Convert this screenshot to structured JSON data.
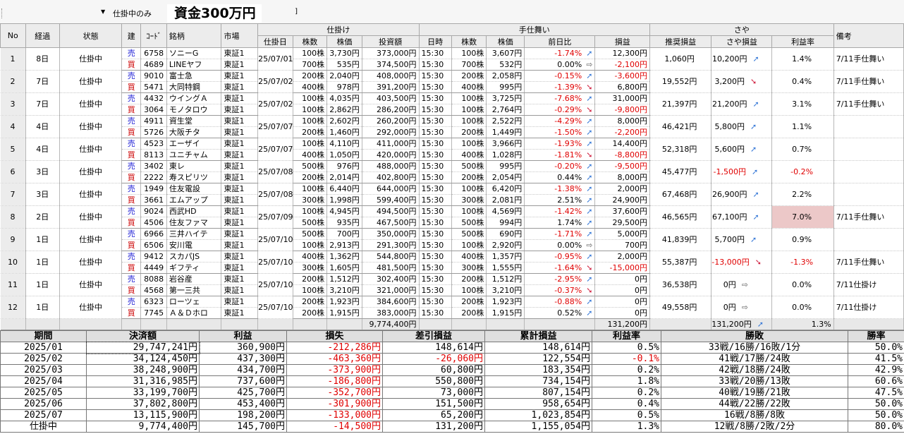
{
  "toolbar": {
    "filter_label": "仕掛中のみ",
    "capital_label": "資金300万円",
    "extra_label": "]"
  },
  "headers": {
    "no": "No",
    "elapsed": "経過",
    "status": "状態",
    "side": "建",
    "code": "ｺｰﾄﾞ",
    "name": "銘柄",
    "market": "市場",
    "entry_group": "仕掛け",
    "exit_group": "手仕舞い",
    "spread_group": "さや",
    "note": "備考",
    "entry_date": "仕掛日",
    "shares": "株数",
    "price": "株価",
    "amount": "投資額",
    "time": "日時",
    "exit_shares": "株数",
    "exit_price": "株価",
    "prev_diff": "前日比",
    "pl": "損益",
    "rec_pl": "推奨損益",
    "spread_pl": "さや損益",
    "rate": "利益率"
  },
  "rows": [
    {
      "no": "1",
      "elapsed": "8日",
      "status": "仕掛中",
      "date": "25/07/01",
      "rec": "1,060円",
      "spread": "10,200円",
      "trend": "up",
      "rate": "1.4%",
      "note": "7/11手仕舞い",
      "spread_neg": false,
      "hl": false,
      "legs": [
        {
          "side": "売",
          "code": "6758",
          "name": "ソニーG",
          "market": "東証1",
          "shares": "100株",
          "price": "3,730円",
          "amount": "373,000円",
          "time": "15:30",
          "xshares": "100株",
          "xprice": "3,607円",
          "diff": "-1.74%",
          "dtrend": "up",
          "pl": "12,300円"
        },
        {
          "side": "買",
          "code": "4689",
          "name": "LINEヤフ",
          "market": "東証1",
          "shares": "700株",
          "price": "535円",
          "amount": "374,500円",
          "time": "15:30",
          "xshares": "700株",
          "xprice": "532円",
          "diff": "0.00%",
          "dtrend": "flat",
          "pl": "-2,100円"
        }
      ]
    },
    {
      "no": "2",
      "elapsed": "7日",
      "status": "仕掛中",
      "date": "25/07/02",
      "rec": "19,552円",
      "spread": "3,200円",
      "trend": "down",
      "rate": "0.4%",
      "note": "7/11手仕舞い",
      "spread_neg": false,
      "hl": false,
      "legs": [
        {
          "side": "売",
          "code": "9010",
          "name": "富士急",
          "market": "東証1",
          "shares": "200株",
          "price": "2,040円",
          "amount": "408,000円",
          "time": "15:30",
          "xshares": "200株",
          "xprice": "2,058円",
          "diff": "-0.15%",
          "dtrend": "up",
          "pl": "-3,600円"
        },
        {
          "side": "買",
          "code": "5471",
          "name": "大同特鋼",
          "market": "東証1",
          "shares": "400株",
          "price": "978円",
          "amount": "391,200円",
          "time": "15:30",
          "xshares": "400株",
          "xprice": "995円",
          "diff": "-1.39%",
          "dtrend": "down",
          "pl": "6,800円"
        }
      ]
    },
    {
      "no": "3",
      "elapsed": "7日",
      "status": "仕掛中",
      "date": "25/07/02",
      "rec": "21,397円",
      "spread": "21,200円",
      "trend": "up",
      "rate": "3.1%",
      "note": "7/11手仕舞い",
      "spread_neg": false,
      "hl": false,
      "legs": [
        {
          "side": "売",
          "code": "4432",
          "name": "ウイングＡ",
          "market": "東証1",
          "shares": "100株",
          "price": "4,035円",
          "amount": "403,500円",
          "time": "15:30",
          "xshares": "100株",
          "xprice": "3,725円",
          "diff": "-7.68%",
          "dtrend": "up",
          "pl": "31,000円"
        },
        {
          "side": "買",
          "code": "3064",
          "name": "モノタロウ",
          "market": "東証1",
          "shares": "100株",
          "price": "2,862円",
          "amount": "286,200円",
          "time": "15:30",
          "xshares": "100株",
          "xprice": "2,764円",
          "diff": "-0.29%",
          "dtrend": "down",
          "pl": "-9,800円"
        }
      ]
    },
    {
      "no": "4",
      "elapsed": "4日",
      "status": "仕掛中",
      "date": "25/07/07",
      "rec": "46,421円",
      "spread": "5,800円",
      "trend": "up",
      "rate": "1.1%",
      "note": "",
      "spread_neg": false,
      "hl": false,
      "legs": [
        {
          "side": "売",
          "code": "4911",
          "name": "資生堂",
          "market": "東証1",
          "shares": "100株",
          "price": "2,602円",
          "amount": "260,200円",
          "time": "15:30",
          "xshares": "100株",
          "xprice": "2,522円",
          "diff": "-4.29%",
          "dtrend": "up",
          "pl": "8,000円"
        },
        {
          "side": "買",
          "code": "5726",
          "name": "大阪チタ",
          "market": "東証1",
          "shares": "200株",
          "price": "1,460円",
          "amount": "292,000円",
          "time": "15:30",
          "xshares": "200株",
          "xprice": "1,449円",
          "diff": "-1.50%",
          "dtrend": "up",
          "pl": "-2,200円"
        }
      ]
    },
    {
      "no": "5",
      "elapsed": "4日",
      "status": "仕掛中",
      "date": "25/07/07",
      "rec": "52,318円",
      "spread": "5,600円",
      "trend": "up",
      "rate": "0.7%",
      "note": "",
      "spread_neg": false,
      "hl": false,
      "legs": [
        {
          "side": "売",
          "code": "4523",
          "name": "エーザイ",
          "market": "東証1",
          "shares": "100株",
          "price": "4,110円",
          "amount": "411,000円",
          "time": "15:30",
          "xshares": "100株",
          "xprice": "3,966円",
          "diff": "-1.93%",
          "dtrend": "up",
          "pl": "14,400円"
        },
        {
          "side": "買",
          "code": "8113",
          "name": "ユニチャム",
          "market": "東証1",
          "shares": "400株",
          "price": "1,050円",
          "amount": "420,000円",
          "time": "15:30",
          "xshares": "400株",
          "xprice": "1,028円",
          "diff": "-1.81%",
          "dtrend": "down",
          "pl": "-8,800円"
        }
      ]
    },
    {
      "no": "6",
      "elapsed": "3日",
      "status": "仕掛中",
      "date": "25/07/08",
      "rec": "45,477円",
      "spread": "-1,500円",
      "trend": "up",
      "rate": "-0.2%",
      "note": "",
      "spread_neg": true,
      "hl": false,
      "legs": [
        {
          "side": "売",
          "code": "3402",
          "name": "東レ",
          "market": "東証1",
          "shares": "500株",
          "price": "976円",
          "amount": "488,000円",
          "time": "15:30",
          "xshares": "500株",
          "xprice": "995円",
          "diff": "-0.20%",
          "dtrend": "up",
          "pl": "-9,500円"
        },
        {
          "side": "買",
          "code": "2222",
          "name": "寿スピリツ",
          "market": "東証1",
          "shares": "200株",
          "price": "2,014円",
          "amount": "402,800円",
          "time": "15:30",
          "xshares": "200株",
          "xprice": "2,054円",
          "diff": "0.44%",
          "dtrend": "up",
          "pl": "8,000円"
        }
      ]
    },
    {
      "no": "7",
      "elapsed": "3日",
      "status": "仕掛中",
      "date": "25/07/08",
      "rec": "67,468円",
      "spread": "26,900円",
      "trend": "up",
      "rate": "2.2%",
      "note": "",
      "spread_neg": false,
      "hl": false,
      "legs": [
        {
          "side": "売",
          "code": "1949",
          "name": "住友電設",
          "market": "東証1",
          "shares": "100株",
          "price": "6,440円",
          "amount": "644,000円",
          "time": "15:30",
          "xshares": "100株",
          "xprice": "6,420円",
          "diff": "-1.38%",
          "dtrend": "up",
          "pl": "2,000円"
        },
        {
          "side": "買",
          "code": "3661",
          "name": "エムアップ",
          "market": "東証1",
          "shares": "300株",
          "price": "1,998円",
          "amount": "599,400円",
          "time": "15:30",
          "xshares": "300株",
          "xprice": "2,081円",
          "diff": "2.51%",
          "dtrend": "up",
          "pl": "24,900円"
        }
      ]
    },
    {
      "no": "8",
      "elapsed": "2日",
      "status": "仕掛中",
      "date": "25/07/09",
      "rec": "46,565円",
      "spread": "67,100円",
      "trend": "up",
      "rate": "7.0%",
      "note": "7/11手仕舞い",
      "spread_neg": false,
      "hl": true,
      "legs": [
        {
          "side": "売",
          "code": "9024",
          "name": "西武HD",
          "market": "東証1",
          "shares": "100株",
          "price": "4,945円",
          "amount": "494,500円",
          "time": "15:30",
          "xshares": "100株",
          "xprice": "4,569円",
          "diff": "-1.42%",
          "dtrend": "up",
          "pl": "37,600円"
        },
        {
          "side": "買",
          "code": "4506",
          "name": "住友ファマ",
          "market": "東証1",
          "shares": "500株",
          "price": "935円",
          "amount": "467,500円",
          "time": "15:30",
          "xshares": "500株",
          "xprice": "994円",
          "diff": "1.74%",
          "dtrend": "up",
          "pl": "29,500円"
        }
      ]
    },
    {
      "no": "9",
      "elapsed": "1日",
      "status": "仕掛中",
      "date": "25/07/10",
      "rec": "41,839円",
      "spread": "5,700円",
      "trend": "up",
      "rate": "0.9%",
      "note": "",
      "spread_neg": false,
      "hl": false,
      "legs": [
        {
          "side": "売",
          "code": "6966",
          "name": "三井ハイテ",
          "market": "東証1",
          "shares": "500株",
          "price": "700円",
          "amount": "350,000円",
          "time": "15:30",
          "xshares": "500株",
          "xprice": "690円",
          "diff": "-1.71%",
          "dtrend": "up",
          "pl": "5,000円"
        },
        {
          "side": "買",
          "code": "6506",
          "name": "安川電",
          "market": "東証1",
          "shares": "100株",
          "price": "2,913円",
          "amount": "291,300円",
          "time": "15:30",
          "xshares": "100株",
          "xprice": "2,920円",
          "diff": "0.00%",
          "dtrend": "flat",
          "pl": "700円"
        }
      ]
    },
    {
      "no": "10",
      "elapsed": "1日",
      "status": "仕掛中",
      "date": "25/07/10",
      "rec": "55,387円",
      "spread": "-13,000円",
      "trend": "down",
      "rate": "-1.3%",
      "note": "7/11手仕舞い",
      "spread_neg": true,
      "hl": false,
      "legs": [
        {
          "side": "売",
          "code": "9412",
          "name": "スカパJS",
          "market": "東証1",
          "shares": "400株",
          "price": "1,362円",
          "amount": "544,800円",
          "time": "15:30",
          "xshares": "400株",
          "xprice": "1,357円",
          "diff": "-0.95%",
          "dtrend": "up",
          "pl": "2,000円"
        },
        {
          "side": "買",
          "code": "4449",
          "name": "ギフティ",
          "market": "東証1",
          "shares": "300株",
          "price": "1,605円",
          "amount": "481,500円",
          "time": "15:30",
          "xshares": "300株",
          "xprice": "1,555円",
          "diff": "-1.64%",
          "dtrend": "down",
          "pl": "-15,000円"
        }
      ]
    },
    {
      "no": "11",
      "elapsed": "1日",
      "status": "仕掛中",
      "date": "25/07/10",
      "rec": "36,538円",
      "spread": "0円",
      "trend": "flat",
      "rate": "0.0%",
      "note": "7/11仕掛け",
      "spread_neg": false,
      "hl": false,
      "legs": [
        {
          "side": "売",
          "code": "8088",
          "name": "岩谷産",
          "market": "東証1",
          "shares": "200株",
          "price": "1,512円",
          "amount": "302,400円",
          "time": "15:30",
          "xshares": "200株",
          "xprice": "1,512円",
          "diff": "-2.95%",
          "dtrend": "up",
          "pl": "0円"
        },
        {
          "side": "買",
          "code": "4568",
          "name": "第一三共",
          "market": "東証1",
          "shares": "100株",
          "price": "3,210円",
          "amount": "321,000円",
          "time": "15:30",
          "xshares": "100株",
          "xprice": "3,210円",
          "diff": "-0.37%",
          "dtrend": "down",
          "pl": "0円"
        }
      ]
    },
    {
      "no": "12",
      "elapsed": "1日",
      "status": "仕掛中",
      "date": "25/07/10",
      "rec": "49,558円",
      "spread": "0円",
      "trend": "flat",
      "rate": "0.0%",
      "note": "7/11仕掛け",
      "spread_neg": false,
      "hl": false,
      "legs": [
        {
          "side": "売",
          "code": "6323",
          "name": "ローツェ",
          "market": "東証1",
          "shares": "200株",
          "price": "1,923円",
          "amount": "384,600円",
          "time": "15:30",
          "xshares": "200株",
          "xprice": "1,923円",
          "diff": "-0.88%",
          "dtrend": "up",
          "pl": "0円"
        },
        {
          "side": "買",
          "code": "7745",
          "name": "Ａ＆Ｄホロ",
          "market": "東証1",
          "shares": "200株",
          "price": "1,915円",
          "amount": "383,000円",
          "time": "15:30",
          "xshares": "200株",
          "xprice": "1,915円",
          "diff": "0.52%",
          "dtrend": "up",
          "pl": "0円"
        }
      ]
    }
  ],
  "totals": {
    "amount": "9,774,400円",
    "pl": "131,200円",
    "spread": "131,200円",
    "trend": "up",
    "rate": "1.3%"
  },
  "summary": {
    "headers": [
      "期間",
      "決済額",
      "利益",
      "損失",
      "差引損益",
      "累計損益",
      "利益率",
      "勝敗",
      "勝率"
    ],
    "rows": [
      {
        "period": "2025/01",
        "amount": "29,747,241円",
        "profit": "360,900円",
        "loss": "-212,286円",
        "net": "148,614円",
        "cum": "148,614円",
        "rate": "0.5%",
        "wl": "33戦/16勝/16敗/1分",
        "winrate": "50.0%",
        "net_neg": false,
        "rate_neg": false
      },
      {
        "period": "2025/02",
        "amount": "34,124,450円",
        "profit": "437,300円",
        "loss": "-463,360円",
        "net": "-26,060円",
        "cum": "122,554円",
        "rate": "-0.1%",
        "wl": "41戦/17勝/24敗",
        "winrate": "41.5%",
        "net_neg": true,
        "rate_neg": true
      },
      {
        "period": "2025/03",
        "amount": "38,248,900円",
        "profit": "434,700円",
        "loss": "-373,900円",
        "net": "60,800円",
        "cum": "183,354円",
        "rate": "0.2%",
        "wl": "42戦/18勝/24敗",
        "winrate": "42.9%",
        "net_neg": false,
        "rate_neg": false
      },
      {
        "period": "2025/04",
        "amount": "31,316,985円",
        "profit": "737,600円",
        "loss": "-186,800円",
        "net": "550,800円",
        "cum": "734,154円",
        "rate": "1.8%",
        "wl": "33戦/20勝/13敗",
        "winrate": "60.6%",
        "net_neg": false,
        "rate_neg": false
      },
      {
        "period": "2025/05",
        "amount": "33,199,700円",
        "profit": "425,700円",
        "loss": "-352,700円",
        "net": "73,000円",
        "cum": "807,154円",
        "rate": "0.2%",
        "wl": "40戦/19勝/21敗",
        "winrate": "47.5%",
        "net_neg": false,
        "rate_neg": false
      },
      {
        "period": "2025/06",
        "amount": "37,802,800円",
        "profit": "453,400円",
        "loss": "-301,900円",
        "net": "151,500円",
        "cum": "958,654円",
        "rate": "0.4%",
        "wl": "44戦/22勝/22敗",
        "winrate": "50.0%",
        "net_neg": false,
        "rate_neg": false
      },
      {
        "period": "2025/07",
        "amount": "13,115,900円",
        "profit": "198,200円",
        "loss": "-133,000円",
        "net": "65,200円",
        "cum": "1,023,854円",
        "rate": "0.5%",
        "wl": "16戦/8勝/8敗",
        "winrate": "50.0%",
        "net_neg": false,
        "rate_neg": false
      },
      {
        "period": "仕掛中",
        "amount": "9,774,400円",
        "profit": "145,700円",
        "loss": "-14,500円",
        "net": "131,200円",
        "cum": "1,155,054円",
        "rate": "1.3%",
        "wl": "12戦/8勝/2敗/2分",
        "winrate": "80.0%",
        "net_neg": false,
        "rate_neg": false
      }
    ]
  },
  "icons": {
    "up": "arrow-up-right-icon",
    "down": "arrow-down-right-icon",
    "flat": "arrow-right-icon",
    "dropdown": "dropdown-arrow-icon"
  },
  "colors": {
    "sell": "#1a1ad4",
    "buy": "#cc0000",
    "negative": "#e00000",
    "highlight": "#ecc8c8",
    "arrow_up": "#3a7bd8",
    "arrow_down": "#d02040"
  }
}
